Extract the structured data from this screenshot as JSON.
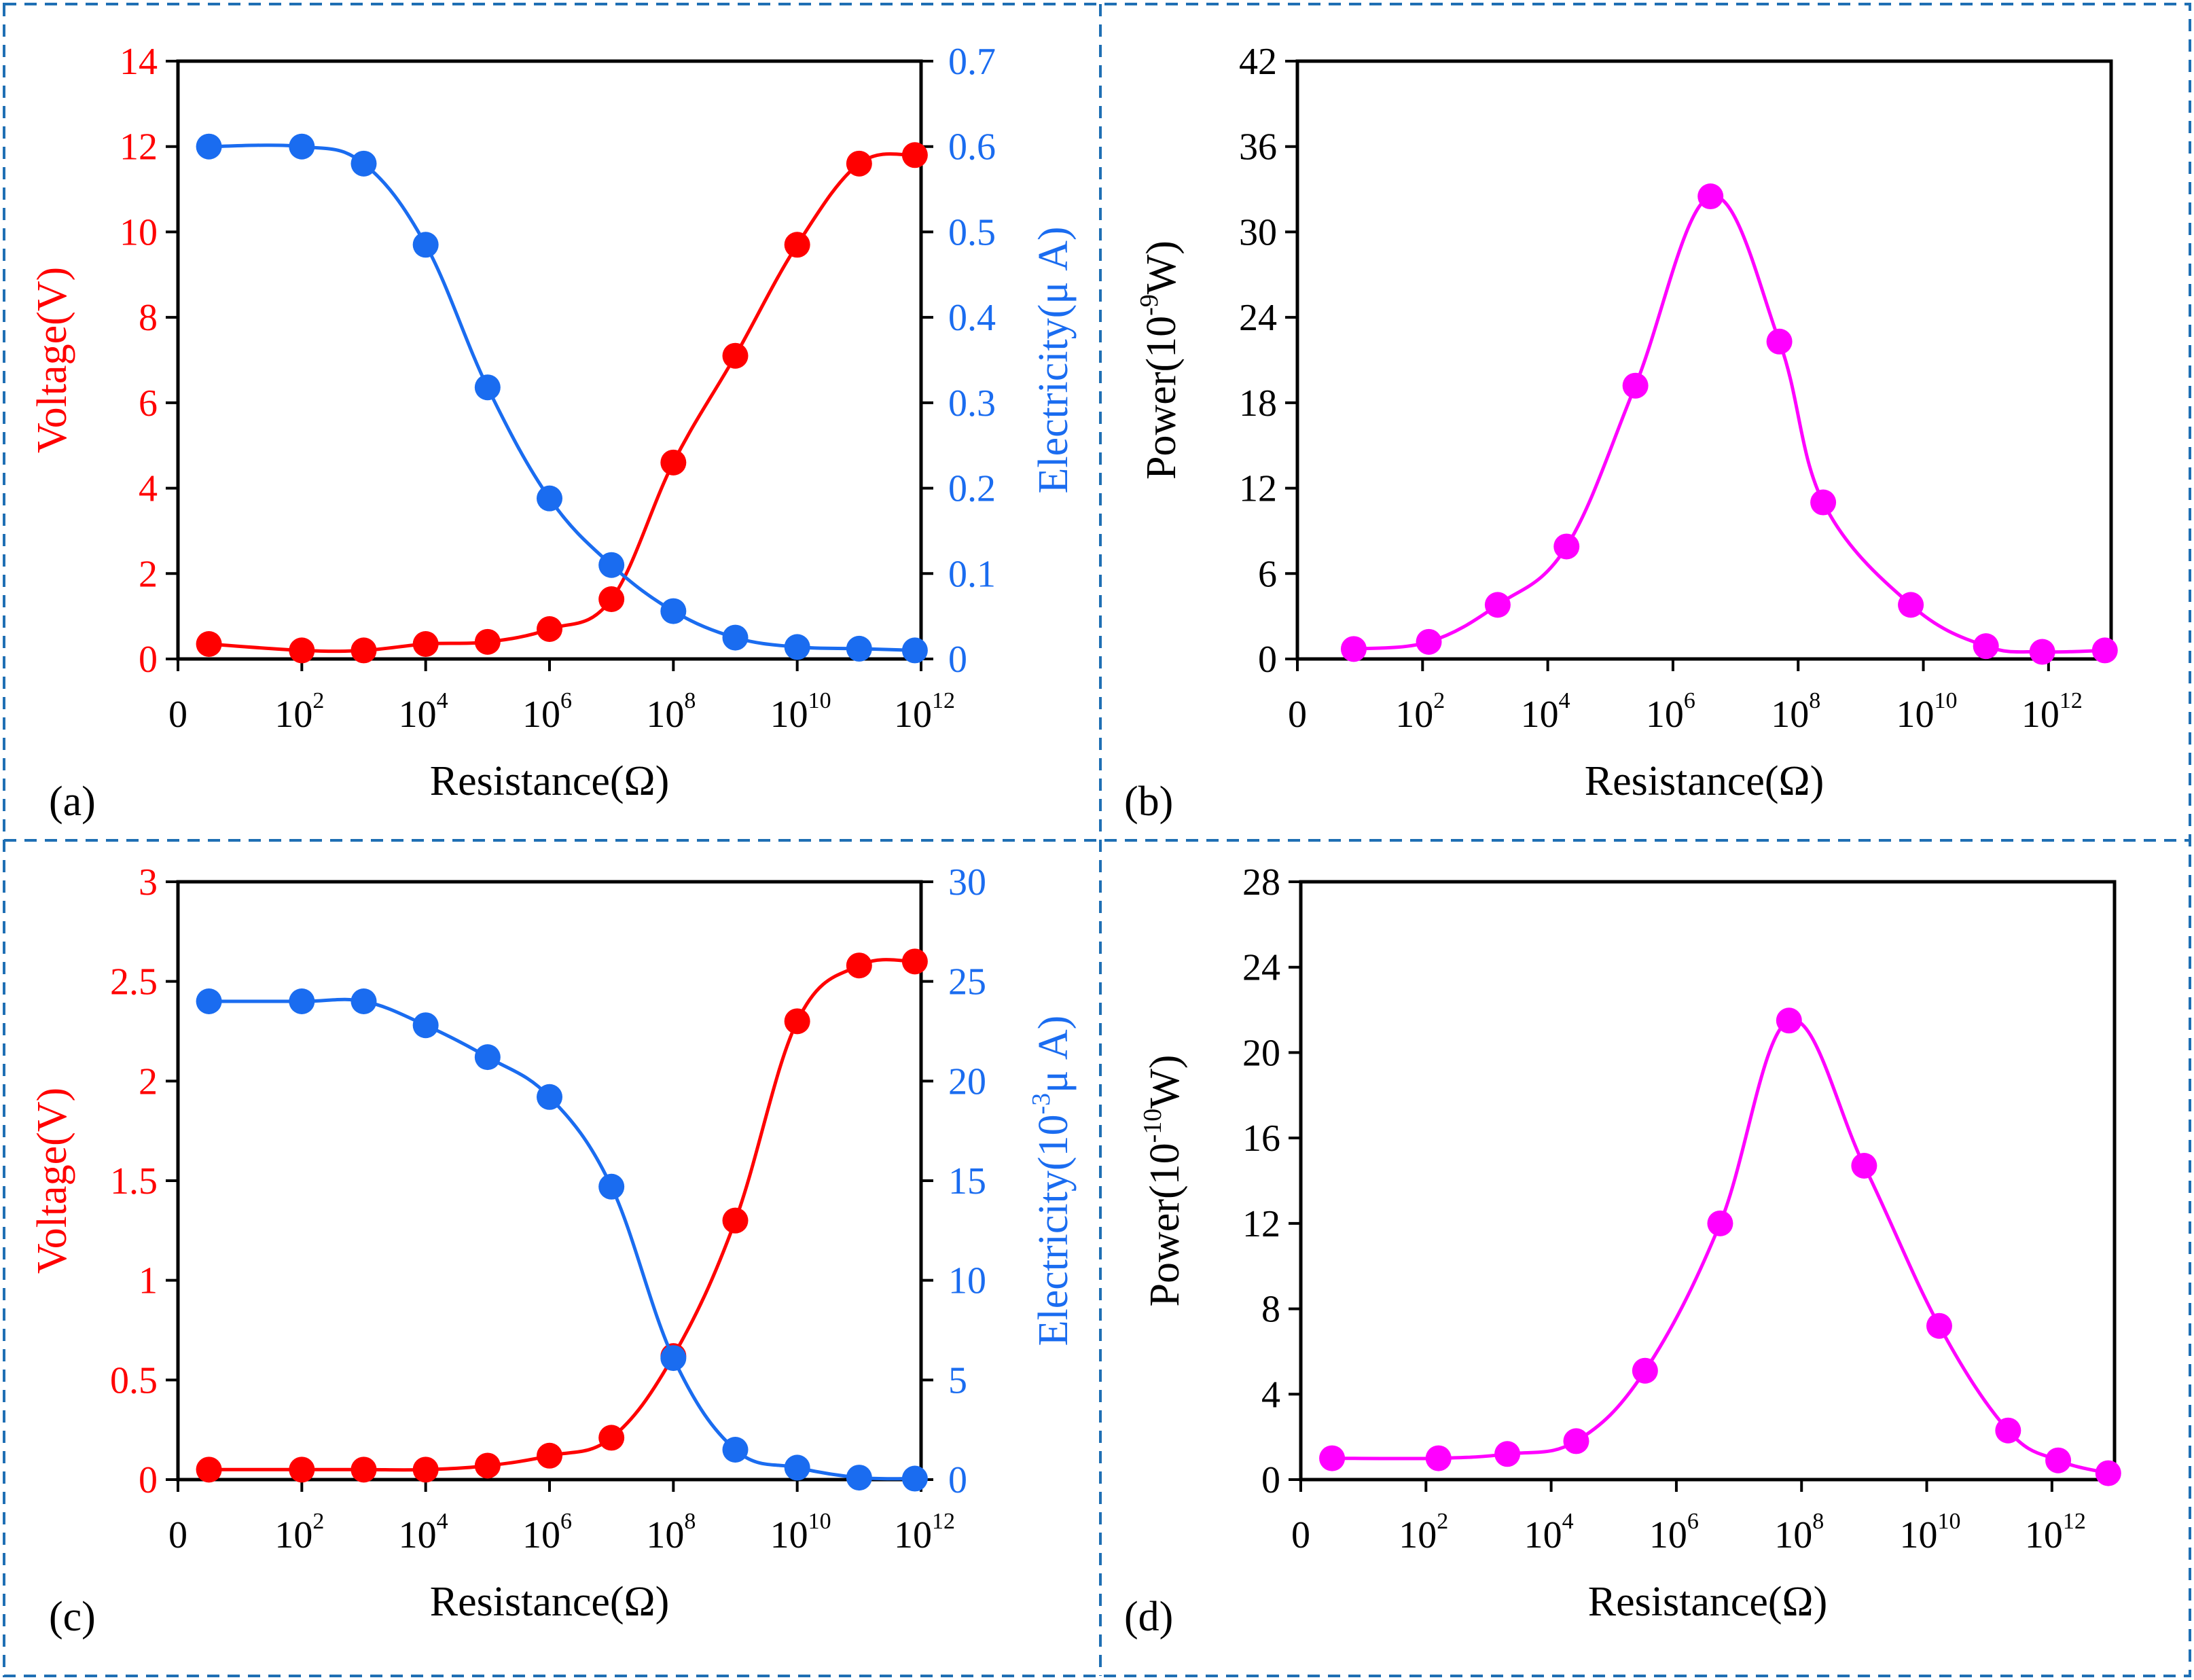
{
  "colors": {
    "voltage": "#ff0000",
    "electricity": "#1a6cf0",
    "power": "#ff00ff",
    "frame": "#1f6fb4",
    "axis": "#000000"
  },
  "x_tick_labels": [
    {
      "exp": null,
      "text": "0"
    },
    {
      "exp": 2,
      "text": "10"
    },
    {
      "exp": 4,
      "text": "10"
    },
    {
      "exp": 6,
      "text": "10"
    },
    {
      "exp": 8,
      "text": "10"
    },
    {
      "exp": 10,
      "text": "10"
    },
    {
      "exp": 12,
      "text": "10"
    }
  ],
  "chart_data": [
    {
      "id": "a",
      "type": "line",
      "panel_label": "(a)",
      "xlabel": "Resistance(Ω)",
      "x": [
        0.5,
        2,
        3,
        4,
        5,
        6,
        7,
        8,
        9,
        10,
        11,
        11.9
      ],
      "xlim": [
        0,
        12
      ],
      "y_left": {
        "label": "Voltage(V)",
        "lim": [
          0,
          14
        ],
        "ticks": [
          0,
          2,
          4,
          6,
          8,
          10,
          12,
          14
        ],
        "tick_labels": [
          "0",
          "2",
          "4",
          "6",
          "8",
          "10",
          "12",
          "14"
        ]
      },
      "y_right": {
        "label": "Electricity(μ A)",
        "lim": [
          0,
          0.7
        ],
        "ticks": [
          0,
          0.1,
          0.2,
          0.3,
          0.4,
          0.5,
          0.6,
          0.7
        ],
        "tick_labels": [
          "0",
          "0.1",
          "0.2",
          "0.3",
          "0.4",
          "0.5",
          "0.6",
          "0.7"
        ]
      },
      "series": [
        {
          "name": "Voltage",
          "axis": "left",
          "color_key": "voltage",
          "values": [
            0.35,
            0.2,
            0.2,
            0.35,
            0.4,
            0.7,
            1.4,
            4.6,
            7.1,
            9.7,
            11.6,
            11.8
          ]
        },
        {
          "name": "Electricity",
          "axis": "right",
          "color_key": "electricity",
          "values": [
            0.6,
            0.6,
            0.58,
            0.485,
            0.318,
            0.188,
            0.11,
            0.056,
            0.025,
            0.014,
            0.012,
            0.01
          ]
        }
      ]
    },
    {
      "id": "b",
      "type": "line",
      "panel_label": "(b)",
      "xlabel": "Resistance(Ω)",
      "x": [
        0.9,
        2.1,
        3.2,
        4.3,
        5.4,
        6.6,
        7.7,
        8.4,
        9.8,
        11,
        11.9,
        12.9
      ],
      "xlim": [
        0,
        13
      ],
      "y_left": {
        "label_main": "Power(10",
        "label_exp": "-9",
        "label_end": "W)",
        "lim": [
          0,
          42
        ],
        "ticks": [
          0,
          6,
          12,
          18,
          24,
          30,
          36,
          42
        ],
        "tick_labels": [
          "0",
          "6",
          "12",
          "18",
          "24",
          "30",
          "36",
          "42"
        ]
      },
      "series": [
        {
          "name": "Power",
          "axis": "left",
          "color_key": "power",
          "values": [
            0.7,
            1.2,
            3.8,
            7.9,
            19.2,
            32.5,
            22.3,
            11.0,
            3.8,
            0.9,
            0.5,
            0.6
          ]
        }
      ]
    },
    {
      "id": "c",
      "type": "line",
      "panel_label": "(c)",
      "xlabel": "Resistance(Ω)",
      "x": [
        0.5,
        2,
        3,
        4,
        5,
        6,
        7,
        8,
        9,
        10,
        11,
        11.9
      ],
      "xlim": [
        0,
        12
      ],
      "y_left": {
        "label": "Voltage(V)",
        "lim": [
          0,
          3
        ],
        "ticks": [
          0,
          0.5,
          1,
          1.5,
          2,
          2.5,
          3
        ],
        "tick_labels": [
          "0",
          "0.5",
          "1",
          "1.5",
          "2",
          "2.5",
          "3"
        ]
      },
      "y_right": {
        "label_main": "Electricity(10",
        "label_exp": "-3",
        "label_end": "μ A)",
        "lim": [
          0,
          30
        ],
        "ticks": [
          0,
          5,
          10,
          15,
          20,
          25,
          30
        ],
        "tick_labels": [
          "0",
          "5",
          "10",
          "15",
          "20",
          "25",
          "30"
        ]
      },
      "series": [
        {
          "name": "Voltage",
          "axis": "left",
          "color_key": "voltage",
          "values": [
            0.05,
            0.05,
            0.05,
            0.05,
            0.07,
            0.12,
            0.21,
            0.62,
            1.3,
            2.3,
            2.58,
            2.6
          ]
        },
        {
          "name": "Electricity",
          "axis": "right",
          "color_key": "electricity",
          "values": [
            24,
            24,
            24,
            22.8,
            21.2,
            19.2,
            14.7,
            6.1,
            1.5,
            0.6,
            0.1,
            0.05
          ]
        }
      ]
    },
    {
      "id": "d",
      "type": "line",
      "panel_label": "(d)",
      "xlabel": "Resistance(Ω)",
      "x": [
        0.5,
        2.2,
        3.3,
        4.4,
        5.5,
        6.7,
        7.8,
        9.0,
        10.2,
        11.3,
        12.1,
        12.9
      ],
      "xlim": [
        0,
        13
      ],
      "y_left": {
        "label_main": "Power(10",
        "label_exp": "-10",
        "label_end": "W)",
        "lim": [
          0,
          28
        ],
        "ticks": [
          0,
          4,
          8,
          12,
          16,
          20,
          24,
          28
        ],
        "tick_labels": [
          "0",
          "4",
          "8",
          "12",
          "16",
          "20",
          "24",
          "28"
        ]
      },
      "series": [
        {
          "name": "Power",
          "axis": "left",
          "color_key": "power",
          "values": [
            1.0,
            1.0,
            1.2,
            1.8,
            5.1,
            12.0,
            21.5,
            14.7,
            7.2,
            2.3,
            0.9,
            0.3
          ]
        }
      ]
    }
  ]
}
